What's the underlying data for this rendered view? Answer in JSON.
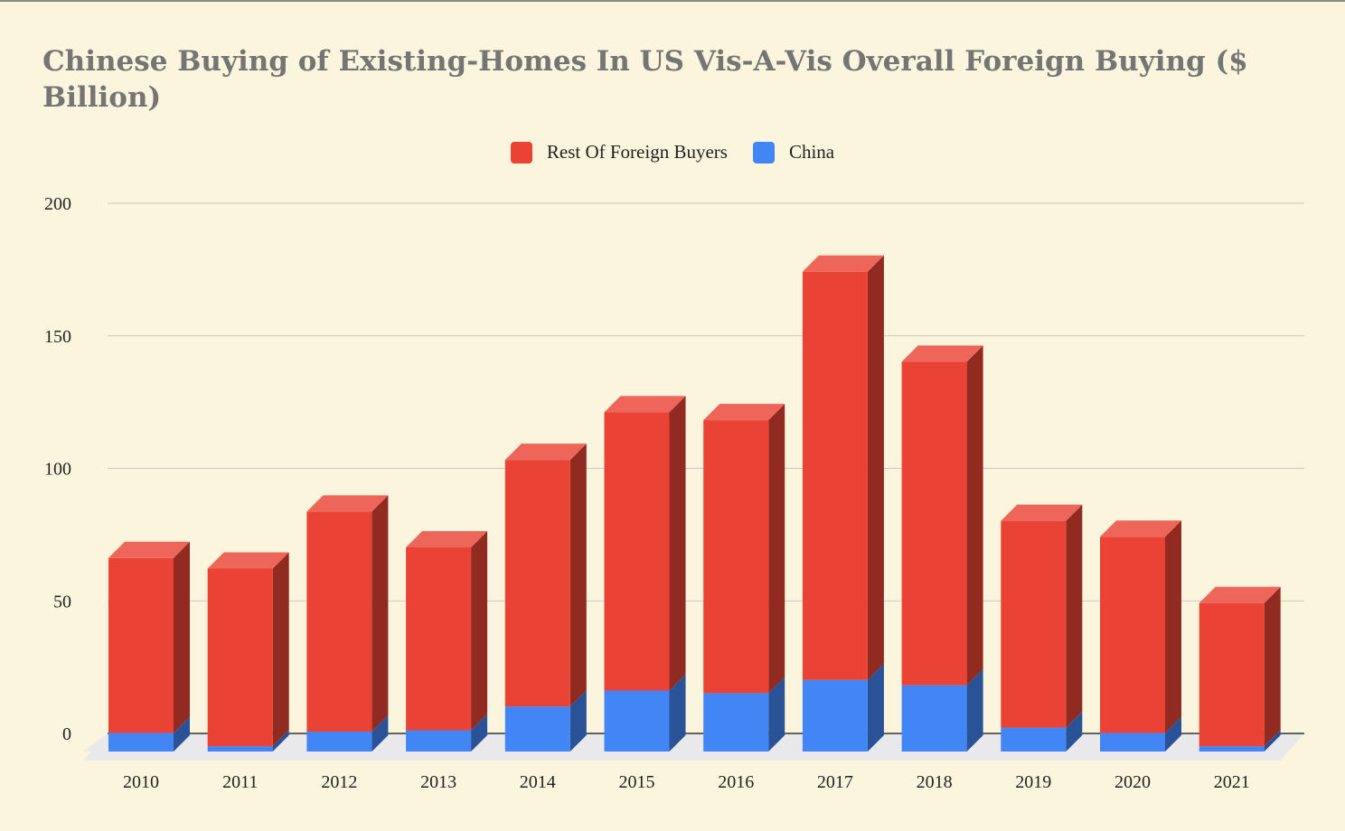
{
  "chart_data": {
    "type": "bar",
    "stacked": true,
    "style": "3d",
    "title": "Chinese Buying of Existing-Homes In US Vis-A-Vis Overall Foreign Buying ($ Billion)",
    "categories": [
      "2010",
      "2011",
      "2012",
      "2013",
      "2014",
      "2015",
      "2016",
      "2017",
      "2018",
      "2019",
      "2020",
      "2021"
    ],
    "series": [
      {
        "name": "China",
        "color": "#4285f4",
        "values": [
          7,
          2,
          7.5,
          8,
          17,
          23,
          22,
          27,
          25,
          9,
          7,
          2
        ]
      },
      {
        "name": "Rest Of Foreign Buyers",
        "color": "#ea4335",
        "values": [
          66,
          67,
          83,
          69,
          93,
          105,
          103,
          154,
          122,
          78,
          74,
          54
        ]
      }
    ],
    "legend_order": [
      "Rest Of Foreign Buyers",
      "China"
    ],
    "legend_position": "top",
    "ylim": [
      0,
      200
    ],
    "yticks": [
      "0",
      "50",
      "100",
      "150",
      "200"
    ],
    "grid": true
  }
}
